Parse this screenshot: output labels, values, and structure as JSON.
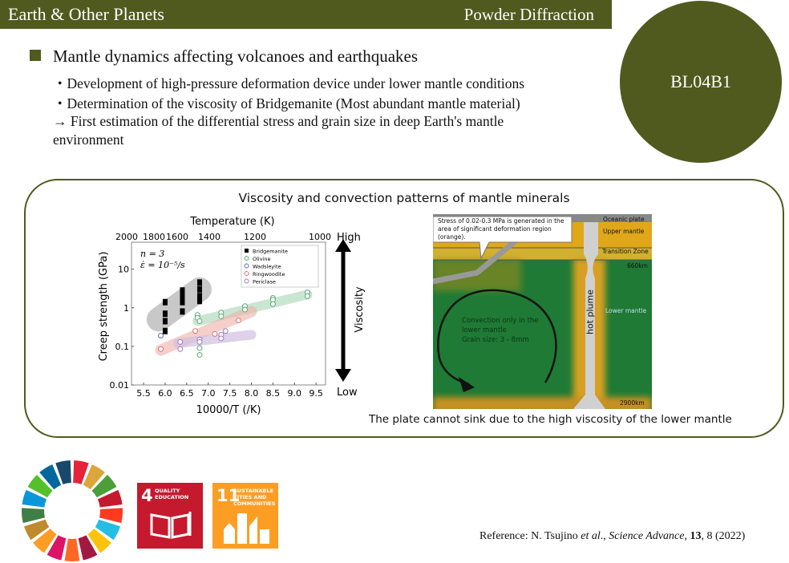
{
  "header": {
    "title": "Earth & Other Planets",
    "category": "Powder Diffraction",
    "beamline": "BL04B1",
    "color": "#515a1e"
  },
  "content": {
    "heading": "Mantle dynamics affecting volcanoes and earthquakes",
    "lines": [
      "・Development of high-pressure deformation device under lower mantle conditions",
      "・Determination of the viscosity of Bridgemanite (Most abundant mantle material)",
      "→ First estimation of the differential stress and grain size in deep Earth's mantle",
      "environment"
    ]
  },
  "panel": {
    "title": "Viscosity and convection patterns of mantle minerals",
    "caption": "The plate cannot sink due to the high viscosity of the lower mantle",
    "viscosity": {
      "label": "Viscosity",
      "high": "High",
      "low": "Low"
    }
  },
  "chart_data": {
    "type": "scatter",
    "xlabel": "10000/T (/K)",
    "ylabel": "Creep strength (GPa)",
    "top_axis_label": "Temperature (K)",
    "top_ticks": [
      "2000",
      "1800",
      "1600",
      "1400",
      "1200",
      "1000"
    ],
    "xlim": [
      5.22,
      9.72
    ],
    "ylim": [
      0.01,
      50
    ],
    "yscale": "log",
    "xticks": [
      "5.5",
      "6.0",
      "6.5",
      "7.0",
      "7.5",
      "8.0",
      "8.5",
      "9.0",
      "9.5"
    ],
    "yticks": [
      "0.01",
      "0.1",
      "1",
      "10"
    ],
    "annotation": [
      "n = 3",
      "ε̇ = 10⁻⁵/s"
    ],
    "legend": "top-right",
    "series": [
      {
        "name": "Bridgemanite",
        "marker": "square",
        "color": "#000000",
        "points": [
          [
            6.0,
            1.4
          ],
          [
            6.0,
            0.7
          ],
          [
            6.0,
            0.45
          ],
          [
            6.0,
            0.25
          ],
          [
            6.4,
            2.8
          ],
          [
            6.4,
            2.0
          ],
          [
            6.4,
            1.4
          ],
          [
            6.4,
            0.8
          ],
          [
            6.8,
            4.5
          ],
          [
            6.8,
            3.0
          ],
          [
            6.8,
            2.0
          ],
          [
            6.8,
            1.5
          ]
        ]
      },
      {
        "name": "Olivine",
        "marker": "circle",
        "color": "#5aa878",
        "points": [
          [
            6.75,
            0.65
          ],
          [
            6.75,
            0.55
          ],
          [
            6.8,
            0.45
          ],
          [
            6.8,
            0.09
          ],
          [
            6.8,
            0.06
          ],
          [
            7.3,
            0.75
          ],
          [
            7.3,
            0.6
          ],
          [
            7.85,
            1.1
          ],
          [
            7.85,
            0.9
          ],
          [
            8.5,
            1.8
          ],
          [
            8.5,
            1.6
          ],
          [
            8.5,
            1.25
          ],
          [
            9.3,
            2.5
          ],
          [
            9.3,
            2.0
          ]
        ]
      },
      {
        "name": "Wadsleyite",
        "marker": "circle",
        "color": "#5a6fc8",
        "points": [
          [
            5.9,
            0.19
          ]
        ]
      },
      {
        "name": "Ringwoodite",
        "marker": "circle",
        "color": "#e07070",
        "points": [
          [
            5.9,
            0.085
          ],
          [
            6.7,
            0.25
          ],
          [
            7.15,
            0.21
          ],
          [
            7.7,
            0.47
          ]
        ]
      },
      {
        "name": "Periclase",
        "marker": "circle",
        "color": "#a07ac0",
        "points": [
          [
            6.35,
            0.13
          ],
          [
            6.35,
            0.085
          ],
          [
            6.8,
            0.15
          ],
          [
            6.8,
            0.13
          ],
          [
            7.3,
            0.2
          ],
          [
            7.3,
            0.16
          ],
          [
            7.4,
            0.25
          ]
        ]
      }
    ]
  },
  "diagram": {
    "callout": "Stress of 0.02-0.3 MPa is generated in the area of significant deformation region (orange).",
    "labels": {
      "oceanic": "Oceanic plate",
      "upper": "Upper mantle",
      "transition": "Transition Zone",
      "d660": "660km",
      "lower": "Lower mantle",
      "plume": "hot plume",
      "d2900": "2900km"
    },
    "convection": [
      "Convection only in the",
      "lower mantle",
      "Grain size: 3 - 8mm"
    ]
  },
  "sdg": {
    "wheel_colors": [
      "#e5243b",
      "#dda63a",
      "#4c9f38",
      "#c5192d",
      "#ff3a21",
      "#26bde2",
      "#fcc30b",
      "#a21942",
      "#fd6925",
      "#dd1367",
      "#fd9d24",
      "#bf8b2e",
      "#3f7e44",
      "#0a97d9",
      "#56c02b",
      "#00689d",
      "#19486a"
    ],
    "goals": [
      {
        "number": "4",
        "label": "QUALITY EDUCATION",
        "color": "#c5192d"
      },
      {
        "number": "11",
        "label": "SUSTAINABLE CITIES AND COMMUNITIES",
        "color": "#fd9d24"
      }
    ]
  },
  "reference": {
    "prefix": "Reference: N. Tsujino ",
    "etal": "et al",
    "mid": "., ",
    "journal": "Science Advance",
    "sep": ", ",
    "volume": "13",
    "rest": ", 8 (2022)"
  }
}
